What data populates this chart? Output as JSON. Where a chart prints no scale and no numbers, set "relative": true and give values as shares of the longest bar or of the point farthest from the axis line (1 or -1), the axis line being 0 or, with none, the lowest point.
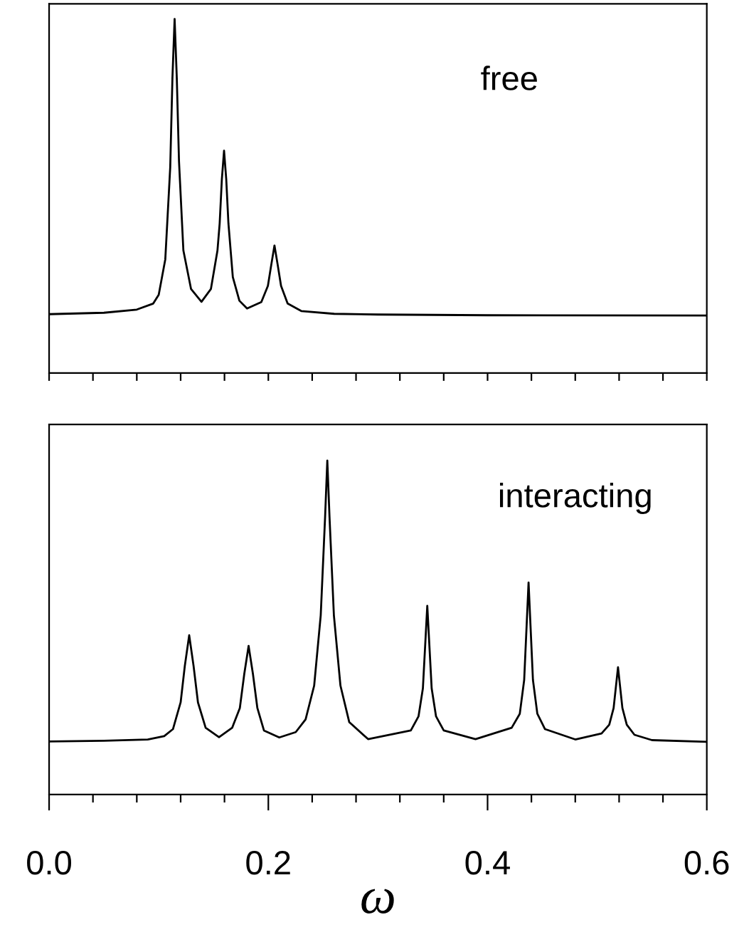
{
  "chart_data": [
    {
      "type": "line",
      "relative": true,
      "annotations": [
        "free"
      ],
      "xlim": [
        0,
        0.6
      ],
      "tick_labels": false,
      "xticks": [
        {
          "value": 0,
          "label": null
        },
        {
          "value": 0.04,
          "label": null
        },
        {
          "value": 0.08,
          "label": null
        },
        {
          "value": 0.12,
          "label": null
        },
        {
          "value": 0.16,
          "label": null
        },
        {
          "value": 0.2,
          "label": null
        },
        {
          "value": 0.24,
          "label": null
        },
        {
          "value": 0.28,
          "label": null
        },
        {
          "value": 0.32,
          "label": null
        },
        {
          "value": 0.36,
          "label": null
        },
        {
          "value": 0.4,
          "label": null
        },
        {
          "value": 0.44,
          "label": null
        },
        {
          "value": 0.48,
          "label": null
        },
        {
          "value": 0.52,
          "label": null
        },
        {
          "value": 0.56,
          "label": null
        },
        {
          "value": 0.6,
          "label": null
        }
      ],
      "series": [
        {
          "color": "#000000",
          "x": [
            0,
            0.05,
            0.08,
            0.095,
            0.1,
            0.106,
            0.1105,
            0.1125,
            0.1145,
            0.1165,
            0.1185,
            0.1225,
            0.1295,
            0.139,
            0.1476,
            0.1536,
            0.1556,
            0.1576,
            0.1596,
            0.1616,
            0.1636,
            0.1676,
            0.1736,
            0.1806,
            0.1936,
            0.1996,
            0.2026,
            0.2056,
            0.2086,
            0.2116,
            0.2176,
            0.23,
            0.26,
            0.3,
            0.4,
            0.6
          ],
          "values": [
            0.166,
            0.17,
            0.179,
            0.196,
            0.221,
            0.321,
            0.581,
            0.832,
            1.0,
            0.832,
            0.598,
            0.346,
            0.237,
            0.201,
            0.237,
            0.346,
            0.422,
            0.547,
            0.628,
            0.547,
            0.422,
            0.271,
            0.204,
            0.182,
            0.2,
            0.246,
            0.304,
            0.36,
            0.304,
            0.246,
            0.196,
            0.175,
            0.167,
            0.165,
            0.163,
            0.162
          ]
        }
      ]
    },
    {
      "type": "line",
      "relative": true,
      "annotations": [
        "interacting"
      ],
      "xlim": [
        0,
        0.6
      ],
      "xlabel": "ω",
      "tick_labels": "x",
      "xticks": [
        {
          "value": 0,
          "label": "0.0"
        },
        {
          "value": 0.04,
          "label": null
        },
        {
          "value": 0.08,
          "label": null
        },
        {
          "value": 0.12,
          "label": null
        },
        {
          "value": 0.16,
          "label": null
        },
        {
          "value": 0.2,
          "label": "0.2"
        },
        {
          "value": 0.24,
          "label": null
        },
        {
          "value": 0.28,
          "label": null
        },
        {
          "value": 0.32,
          "label": null
        },
        {
          "value": 0.36,
          "label": null
        },
        {
          "value": 0.4,
          "label": "0.4"
        },
        {
          "value": 0.44,
          "label": null
        },
        {
          "value": 0.48,
          "label": null
        },
        {
          "value": 0.52,
          "label": null
        },
        {
          "value": 0.56,
          "label": null
        },
        {
          "value": 0.6,
          "label": "0.6"
        }
      ],
      "series": [
        {
          "color": "#000000",
          "x": [
            0,
            0.05,
            0.09,
            0.105,
            0.113,
            0.12,
            0.1238,
            0.1278,
            0.1318,
            0.1358,
            0.1428,
            0.155,
            0.167,
            0.174,
            0.178,
            0.182,
            0.186,
            0.19,
            0.196,
            0.21,
            0.225,
            0.234,
            0.2418,
            0.2478,
            0.2518,
            0.2538,
            0.2558,
            0.2598,
            0.2658,
            0.2738,
            0.291,
            0.33,
            0.337,
            0.341,
            0.345,
            0.349,
            0.353,
            0.36,
            0.389,
            0.422,
            0.4294,
            0.4334,
            0.4374,
            0.4414,
            0.4454,
            0.4524,
            0.48,
            0.504,
            0.511,
            0.515,
            0.519,
            0.523,
            0.527,
            0.534,
            0.55,
            0.6
          ],
          "values": [
            0.159,
            0.161,
            0.165,
            0.175,
            0.196,
            0.276,
            0.385,
            0.477,
            0.385,
            0.276,
            0.2,
            0.172,
            0.2,
            0.259,
            0.36,
            0.445,
            0.36,
            0.259,
            0.192,
            0.171,
            0.187,
            0.225,
            0.326,
            0.537,
            0.832,
            1.0,
            0.832,
            0.537,
            0.326,
            0.217,
            0.166,
            0.192,
            0.234,
            0.318,
            0.565,
            0.318,
            0.234,
            0.192,
            0.166,
            0.2,
            0.242,
            0.343,
            0.635,
            0.343,
            0.242,
            0.196,
            0.165,
            0.183,
            0.209,
            0.259,
            0.381,
            0.259,
            0.209,
            0.179,
            0.163,
            0.158
          ]
        }
      ]
    }
  ]
}
